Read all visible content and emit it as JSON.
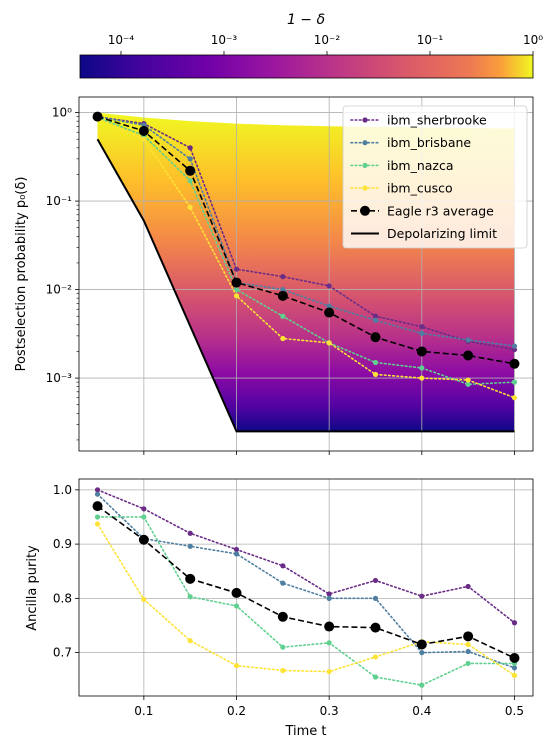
{
  "chart_data": [
    {
      "type": "colorbar",
      "title": "1 − δ",
      "scale": "log",
      "range": [
        4e-05,
        1
      ],
      "colormap": "plasma",
      "ticks": [
        {
          "value": 0.0001,
          "label": "10⁻⁴"
        },
        {
          "value": 0.001,
          "label": "10⁻³"
        },
        {
          "value": 0.01,
          "label": "10⁻²"
        },
        {
          "value": 0.1,
          "label": "10⁻¹"
        },
        {
          "value": 1,
          "label": "10⁰"
        }
      ]
    },
    {
      "type": "line",
      "ylabel": "Postselection probability p₀(δ)",
      "xlabel": "",
      "yscale": "log",
      "xlim": [
        0.03,
        0.52
      ],
      "ylim": [
        0.00015,
        1.5
      ],
      "grid": true,
      "legend_position": "top-right",
      "y_ticks": [
        {
          "value": 0.001,
          "label": "10⁻³"
        },
        {
          "value": 0.01,
          "label": "10⁻²"
        },
        {
          "value": 0.1,
          "label": "10⁻¹"
        },
        {
          "value": 1,
          "label": "10⁰"
        }
      ],
      "x": [
        0.05,
        0.1,
        0.15,
        0.2,
        0.25,
        0.3,
        0.35,
        0.4,
        0.45,
        0.5
      ],
      "shaded_region": {
        "colormap": "plasma",
        "upper": [
          1.0,
          0.88,
          0.8,
          0.75,
          0.72,
          0.7,
          0.69,
          0.68,
          0.67,
          0.66
        ],
        "lower": "Depolarizing limit"
      },
      "series": [
        {
          "name": "ibm_sherbrooke",
          "color": "#6a2c87",
          "style": "dotted",
          "values": [
            0.9,
            0.75,
            0.4,
            0.017,
            0.014,
            0.011,
            0.005,
            0.0038,
            0.0026,
            0.0021
          ]
        },
        {
          "name": "ibm_brisbane",
          "color": "#4f7fa0",
          "style": "dotted",
          "values": [
            0.9,
            0.72,
            0.3,
            0.012,
            0.01,
            0.0065,
            0.0045,
            0.0032,
            0.0027,
            0.0023
          ]
        },
        {
          "name": "ibm_nazca",
          "color": "#5fd08f",
          "style": "dotted",
          "values": [
            0.88,
            0.55,
            0.17,
            0.01,
            0.005,
            0.0025,
            0.0015,
            0.0013,
            0.00085,
            0.0009
          ]
        },
        {
          "name": "ibm_cusco",
          "color": "#fde336",
          "style": "dotted",
          "values": [
            0.85,
            0.5,
            0.085,
            0.0085,
            0.0028,
            0.0025,
            0.0011,
            0.001,
            0.00095,
            0.0006
          ]
        },
        {
          "name": "Eagle r3 average",
          "color": "#000000",
          "style": "dashed-markers",
          "values": [
            0.9,
            0.62,
            0.22,
            0.012,
            0.0085,
            0.0055,
            0.0029,
            0.002,
            0.0018,
            0.00145
          ]
        },
        {
          "name": "Depolarizing limit",
          "color": "#000000",
          "style": "solid",
          "x": [
            0.05,
            0.1,
            0.2,
            0.5
          ],
          "values": [
            0.5,
            0.06,
            0.00025,
            0.00025
          ]
        }
      ]
    },
    {
      "type": "line",
      "ylabel": "Ancilla purity",
      "xlabel": "Time t",
      "xlim": [
        0.03,
        0.52
      ],
      "ylim": [
        0.62,
        1.02
      ],
      "grid": true,
      "x": [
        0.05,
        0.1,
        0.15,
        0.2,
        0.25,
        0.3,
        0.35,
        0.4,
        0.45,
        0.5
      ],
      "x_ticks": [
        {
          "value": 0.1,
          "label": "0.1"
        },
        {
          "value": 0.2,
          "label": "0.2"
        },
        {
          "value": 0.3,
          "label": "0.3"
        },
        {
          "value": 0.4,
          "label": "0.4"
        },
        {
          "value": 0.5,
          "label": "0.5"
        }
      ],
      "y_ticks": [
        {
          "value": 0.7,
          "label": "0.7"
        },
        {
          "value": 0.8,
          "label": "0.8"
        },
        {
          "value": 0.9,
          "label": "0.9"
        },
        {
          "value": 1.0,
          "label": "1.0"
        }
      ],
      "series": [
        {
          "name": "ibm_sherbrooke",
          "color": "#6a2c87",
          "style": "dotted",
          "values": [
            1.0,
            0.965,
            0.92,
            0.89,
            0.86,
            0.808,
            0.833,
            0.804,
            0.822,
            0.755
          ]
        },
        {
          "name": "ibm_brisbane",
          "color": "#4f7fa0",
          "style": "dotted",
          "values": [
            0.992,
            0.91,
            0.896,
            0.882,
            0.828,
            0.8,
            0.8,
            0.7,
            0.702,
            0.672
          ]
        },
        {
          "name": "ibm_nazca",
          "color": "#5fd08f",
          "style": "dotted",
          "values": [
            0.95,
            0.95,
            0.803,
            0.786,
            0.71,
            0.718,
            0.655,
            0.64,
            0.68,
            0.68
          ]
        },
        {
          "name": "ibm_cusco",
          "color": "#fde336",
          "style": "dotted",
          "values": [
            0.937,
            0.798,
            0.722,
            0.676,
            0.667,
            0.665,
            0.692,
            0.72,
            0.715,
            0.658
          ]
        },
        {
          "name": "Eagle r3 average",
          "color": "#000000",
          "style": "dashed-markers",
          "values": [
            0.97,
            0.908,
            0.836,
            0.81,
            0.766,
            0.748,
            0.746,
            0.715,
            0.73,
            0.69
          ]
        }
      ]
    }
  ]
}
